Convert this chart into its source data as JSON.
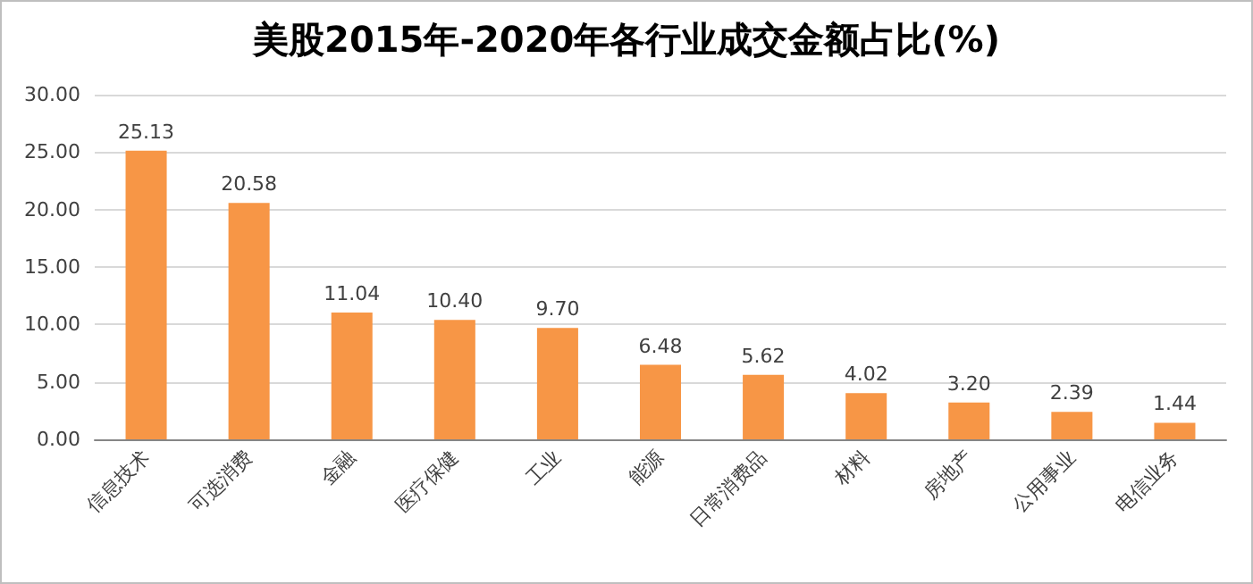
{
  "chart_data": {
    "type": "bar",
    "title": "美股2015年-2020年各行业成交金额占比(%)",
    "categories": [
      "信息技术",
      "可选消费",
      "金融",
      "医疗保健",
      "工业",
      "能源",
      "日常消费品",
      "材料",
      "房地产",
      "公用事业",
      "电信业务"
    ],
    "values": [
      25.13,
      20.58,
      11.04,
      10.4,
      9.7,
      6.48,
      5.62,
      4.02,
      3.2,
      2.39,
      1.44
    ],
    "value_labels": [
      "25.13",
      "20.58",
      "11.04",
      "10.40",
      "9.70",
      "6.48",
      "5.62",
      "4.02",
      "3.20",
      "2.39",
      "1.44"
    ],
    "color": "#f79646",
    "ylim": [
      0,
      30
    ],
    "yticks": [
      {
        "value": 0,
        "label": "0.00"
      },
      {
        "value": 5,
        "label": "5.00"
      },
      {
        "value": 10,
        "label": "10.00"
      },
      {
        "value": 15,
        "label": "15.00"
      },
      {
        "value": 20,
        "label": "20.00"
      },
      {
        "value": 25,
        "label": "25.00"
      },
      {
        "value": 30,
        "label": "30.00"
      }
    ],
    "grid": "y"
  }
}
